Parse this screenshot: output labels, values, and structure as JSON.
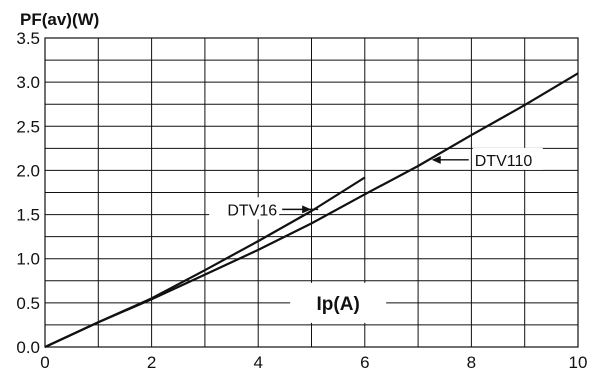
{
  "chart_data": {
    "type": "line",
    "title": "",
    "ylabel": "PF(av)(W)",
    "xlabel": "Ip(A)",
    "xlim": [
      0,
      10
    ],
    "ylim": [
      0,
      3.5
    ],
    "x_ticks": [
      0,
      2,
      4,
      6,
      8,
      10
    ],
    "x_tick_labels": [
      "0",
      "2",
      "4",
      "6",
      "8",
      "10"
    ],
    "y_ticks": [
      0,
      0.5,
      1.0,
      1.5,
      2.0,
      2.5,
      3.0,
      3.5
    ],
    "y_tick_labels": [
      "0.0",
      "0.5",
      "1.0",
      "1.5",
      "2.0",
      "2.5",
      "3.0",
      "3.5"
    ],
    "grid": true,
    "grid_x_step": 1,
    "grid_y_step": 0.25,
    "legend": "none",
    "line_color": "#111111",
    "grid_color": "#111111",
    "series": [
      {
        "name": "DTV16",
        "x": [
          0,
          1,
          2,
          3,
          4,
          5,
          6
        ],
        "y": [
          0,
          0.28,
          0.55,
          0.87,
          1.2,
          1.54,
          1.92
        ]
      },
      {
        "name": "DTV110",
        "x": [
          0,
          1,
          2,
          3,
          4,
          5,
          6,
          7,
          8,
          9,
          10
        ],
        "y": [
          0,
          0.28,
          0.54,
          0.82,
          1.1,
          1.4,
          1.73,
          2.05,
          2.4,
          2.74,
          3.1
        ]
      }
    ],
    "annotations": [
      {
        "text": "DTV16",
        "series": "DTV16",
        "at_x": 5.05
      },
      {
        "text": "DTV110",
        "series": "DTV110",
        "at_x": 7.2
      }
    ]
  }
}
